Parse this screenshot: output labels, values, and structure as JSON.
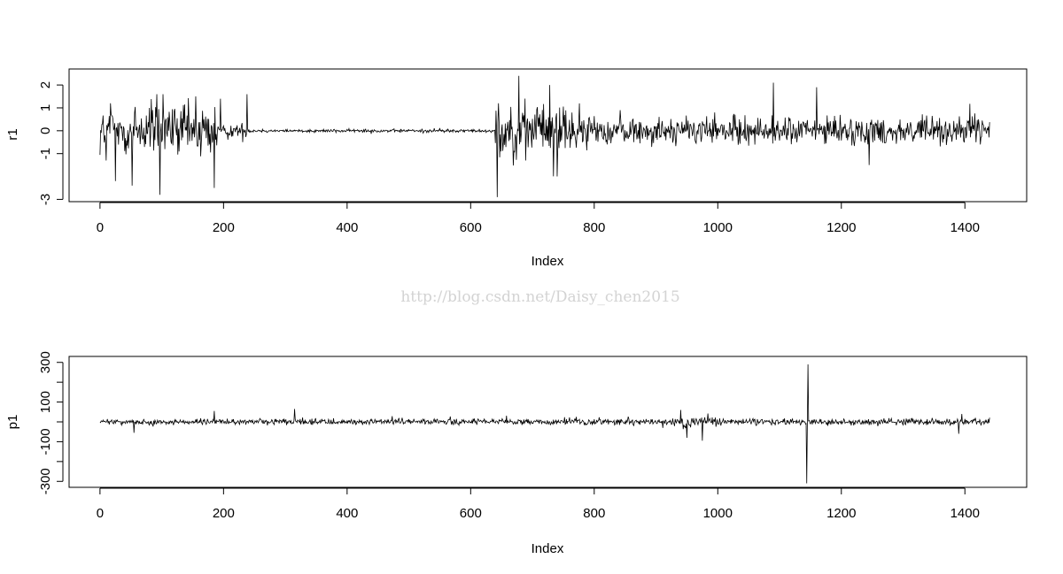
{
  "watermark": "http://blog.csdn.net/Daisy_chen2015",
  "chart_data": [
    {
      "type": "line",
      "title": "",
      "xlabel": "Index",
      "ylabel": "r1",
      "xlim": [
        -50,
        1500
      ],
      "ylim": [
        -3.1,
        2.7
      ],
      "x_ticks": [
        0,
        200,
        400,
        600,
        800,
        1000,
        1200,
        1400
      ],
      "y_ticks": [
        -3,
        -1,
        0,
        1,
        2
      ],
      "n_points": 1441,
      "segments": [
        {
          "x_range": [
            0,
            190
          ],
          "amplitude": 1.0,
          "min": -2.9,
          "max": 1.6
        },
        {
          "x_range": [
            190,
            240
          ],
          "amplitude": 0.25,
          "min": -0.5,
          "max": 1.6
        },
        {
          "x_range": [
            240,
            640
          ],
          "amplitude": 0.06,
          "min": -0.2,
          "max": 0.4
        },
        {
          "x_range": [
            640,
            780
          ],
          "amplitude": 0.9,
          "min": -3.0,
          "max": 2.4
        },
        {
          "x_range": [
            780,
            1440
          ],
          "amplitude": 0.5,
          "min": -1.6,
          "max": 2.1
        }
      ],
      "extremes": [
        {
          "x": 10,
          "y": -1.3
        },
        {
          "x": 17,
          "y": 1.2
        },
        {
          "x": 25,
          "y": -2.2
        },
        {
          "x": 52,
          "y": -2.4
        },
        {
          "x": 80,
          "y": 1.0
        },
        {
          "x": 92,
          "y": 1.6
        },
        {
          "x": 97,
          "y": -2.8
        },
        {
          "x": 155,
          "y": 1.5
        },
        {
          "x": 185,
          "y": -2.5
        },
        {
          "x": 195,
          "y": 1.4
        },
        {
          "x": 238,
          "y": 1.6
        },
        {
          "x": 643,
          "y": -2.9
        },
        {
          "x": 645,
          "y": 1.2
        },
        {
          "x": 678,
          "y": 2.4
        },
        {
          "x": 728,
          "y": 2.0
        },
        {
          "x": 740,
          "y": -2.0
        },
        {
          "x": 1090,
          "y": 2.1
        },
        {
          "x": 1160,
          "y": 1.9
        },
        {
          "x": 1245,
          "y": -1.5
        }
      ]
    },
    {
      "type": "line",
      "title": "",
      "xlabel": "Index",
      "ylabel": "p1",
      "xlim": [
        -50,
        1500
      ],
      "ylim": [
        -330,
        330
      ],
      "x_ticks": [
        0,
        200,
        400,
        600,
        800,
        1000,
        1200,
        1400
      ],
      "y_ticks": [
        -300,
        -100,
        100,
        300
      ],
      "n_points": 1441,
      "segments": [
        {
          "x_range": [
            0,
            940
          ],
          "amplitude": 12,
          "min": -60,
          "max": 60
        },
        {
          "x_range": [
            940,
            1000
          ],
          "amplitude": 25,
          "min": -100,
          "max": 60
        },
        {
          "x_range": [
            1000,
            1440
          ],
          "amplitude": 14,
          "min": -60,
          "max": 60
        }
      ],
      "extremes": [
        {
          "x": 55,
          "y": -55
        },
        {
          "x": 185,
          "y": 55
        },
        {
          "x": 315,
          "y": 65
        },
        {
          "x": 940,
          "y": 60
        },
        {
          "x": 950,
          "y": -80
        },
        {
          "x": 975,
          "y": -95
        },
        {
          "x": 1144,
          "y": -310
        },
        {
          "x": 1146,
          "y": 290
        },
        {
          "x": 1390,
          "y": -60
        },
        {
          "x": 1395,
          "y": 40
        }
      ]
    }
  ]
}
